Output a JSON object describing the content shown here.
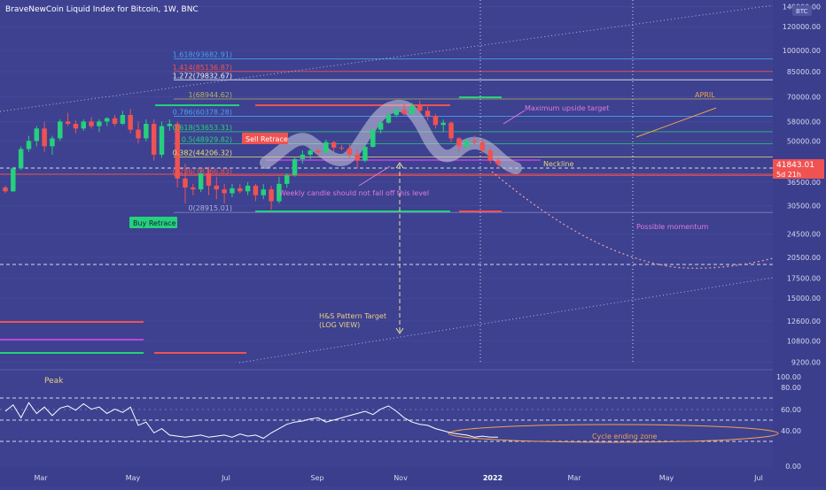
{
  "header": {
    "title": "BraveNewCoin Liquid Index for Bitcoin, 1W, BNC",
    "currency_badge": "BTC"
  },
  "colors": {
    "background": "#3d4190",
    "up_candle": "#26d07c",
    "down_candle": "#f05252",
    "fib_text": "#e8e07a",
    "annotation_pink": "#e07ad8",
    "annotation_orange": "#f0a050",
    "rsi_line": "#ffffff"
  },
  "chart_data": {
    "type": "candlestick",
    "scale": "log",
    "x_ticks": [
      "Mar",
      "May",
      "Jul",
      "Sep",
      "Nov",
      "2022",
      "Mar",
      "May",
      "Jul"
    ],
    "y_ticks": [
      "140000.00",
      "120000.00",
      "100000.00",
      "85000.00",
      "70000.00",
      "58000.00",
      "50000.00",
      "36500.00",
      "30500.00",
      "24500.00",
      "20500.00",
      "17500.00",
      "15000.00",
      "12600.00",
      "10800.00",
      "9200.00"
    ],
    "price_labels": {
      "last_price": "41843.01",
      "countdown": "5d 21h",
      "other": "38000.00"
    },
    "fib_levels": [
      {
        "label": "1.618(93682.91)",
        "value": 93682.91
      },
      {
        "label": "1.414(85136.87)",
        "value": 85136.87
      },
      {
        "label": "1.272(79832.67)",
        "value": 79832.67
      },
      {
        "label": "1(68944.62)",
        "value": 68944.62
      },
      {
        "label": "0.786(60378.28)",
        "value": 60378.28
      },
      {
        "label": "0.618(53653.31)",
        "value": 53653.31
      },
      {
        "label": "0.5(48929.82)",
        "value": 48929.82
      },
      {
        "label": "0.382(44206.32)",
        "value": 44206.32
      },
      {
        "label": "0.236(38366.83)",
        "value": 38366.83
      },
      {
        "label": "0(28915.01)",
        "value": 28915.01
      }
    ],
    "candles": [
      [
        35000,
        35500,
        33500,
        34000
      ],
      [
        34000,
        41000,
        33800,
        40500
      ],
      [
        40500,
        48000,
        40000,
        47000
      ],
      [
        47000,
        52000,
        46000,
        50000
      ],
      [
        50000,
        56000,
        48000,
        55000
      ],
      [
        55000,
        58000,
        46000,
        48000
      ],
      [
        48000,
        52000,
        45000,
        51000
      ],
      [
        51000,
        59000,
        50000,
        58000
      ],
      [
        58000,
        62000,
        56000,
        57000
      ],
      [
        57000,
        58500,
        53000,
        55000
      ],
      [
        55000,
        59000,
        54000,
        58000
      ],
      [
        58000,
        60000,
        55000,
        56000
      ],
      [
        56000,
        59000,
        53500,
        58000
      ],
      [
        58000,
        60000,
        56000,
        59500
      ],
      [
        59500,
        61000,
        56000,
        57000
      ],
      [
        57000,
        63000,
        56500,
        61000
      ],
      [
        61000,
        64000,
        53000,
        54500
      ],
      [
        54500,
        58000,
        49000,
        51000
      ],
      [
        51000,
        59000,
        50000,
        57000
      ],
      [
        57000,
        59000,
        43000,
        45000
      ],
      [
        45000,
        58000,
        44000,
        56000
      ],
      [
        56000,
        59000,
        54000,
        57000
      ],
      [
        57000,
        58000,
        35000,
        37500
      ],
      [
        37500,
        42000,
        31000,
        35000
      ],
      [
        35000,
        36000,
        33000,
        34500
      ],
      [
        34500,
        40000,
        33800,
        39000
      ],
      [
        39000,
        41000,
        33000,
        35500
      ],
      [
        35500,
        38000,
        32000,
        34500
      ],
      [
        34500,
        36000,
        31000,
        33500
      ],
      [
        33500,
        36000,
        32500,
        34800
      ],
      [
        34800,
        36000,
        33500,
        34000
      ],
      [
        34000,
        36500,
        33000,
        35500
      ],
      [
        35500,
        36000,
        31500,
        33000
      ],
      [
        33000,
        36000,
        32000,
        34500
      ],
      [
        34500,
        35500,
        29500,
        31500
      ],
      [
        31500,
        38000,
        31000,
        36000
      ],
      [
        36000,
        39000,
        35000,
        38500
      ],
      [
        38500,
        44000,
        38000,
        43500
      ],
      [
        43500,
        46500,
        42000,
        45000
      ],
      [
        45000,
        47500,
        43500,
        46500
      ],
      [
        46500,
        47000,
        44500,
        45800
      ],
      [
        45800,
        50500,
        45500,
        49500
      ],
      [
        49500,
        50000,
        46000,
        47500
      ],
      [
        47500,
        48500,
        46500,
        47200
      ],
      [
        47200,
        49000,
        44000,
        45000
      ],
      [
        45000,
        47000,
        40500,
        43000
      ],
      [
        43000,
        48500,
        42500,
        47800
      ],
      [
        47800,
        55000,
        47500,
        54500
      ],
      [
        54500,
        58000,
        53000,
        57500
      ],
      [
        57500,
        62000,
        57000,
        61000
      ],
      [
        61000,
        64500,
        60000,
        63500
      ],
      [
        63500,
        66500,
        60500,
        61500
      ],
      [
        61500,
        67000,
        61000,
        65500
      ],
      [
        65500,
        68000,
        62000,
        63000
      ],
      [
        63000,
        65000,
        58500,
        60500
      ],
      [
        60500,
        61500,
        55000,
        56500
      ],
      [
        56500,
        59000,
        53500,
        57500
      ],
      [
        57500,
        58000,
        49500,
        51000
      ],
      [
        51000,
        51500,
        46000,
        48000
      ],
      [
        48000,
        51000,
        46500,
        50000
      ],
      [
        50000,
        52000,
        48500,
        49500
      ],
      [
        49500,
        51000,
        45500,
        46500
      ],
      [
        46500,
        47500,
        42000,
        43000
      ],
      [
        43000,
        44000,
        40500,
        41843
      ]
    ],
    "rsi": {
      "y_ticks": [
        "100.00",
        "80.00",
        "60.00",
        "40.00",
        "0.00"
      ],
      "values": [
        68,
        74,
        62,
        76,
        66,
        72,
        64,
        71,
        73,
        69,
        75,
        70,
        72,
        66,
        70,
        67,
        72,
        55,
        58,
        48,
        52,
        46,
        45,
        44,
        45,
        46,
        44,
        45,
        46,
        44,
        47,
        45,
        46,
        43,
        48,
        52,
        56,
        58,
        59,
        61,
        62,
        58,
        60,
        62,
        64,
        66,
        68,
        65,
        70,
        73,
        68,
        62,
        58,
        56,
        55,
        52,
        50,
        48,
        47,
        46,
        44,
        45,
        44,
        44
      ]
    }
  },
  "annotations": {
    "buy_retrace": "Buy Retrace",
    "sell_retrace": "Sell Retrace",
    "maximum_upside": "Maximum upside target",
    "april": "APRIL",
    "neckline": "Neckline",
    "weekly_candle": "Weekly candle should not fall off this level",
    "possible_momentum": "Possible momentum",
    "hs_target_line1": "H&S Pattern Target",
    "hs_target_line2": "(LOG VIEW)",
    "peak": "Peak",
    "cycle_ending": "Cycle ending zone"
  }
}
